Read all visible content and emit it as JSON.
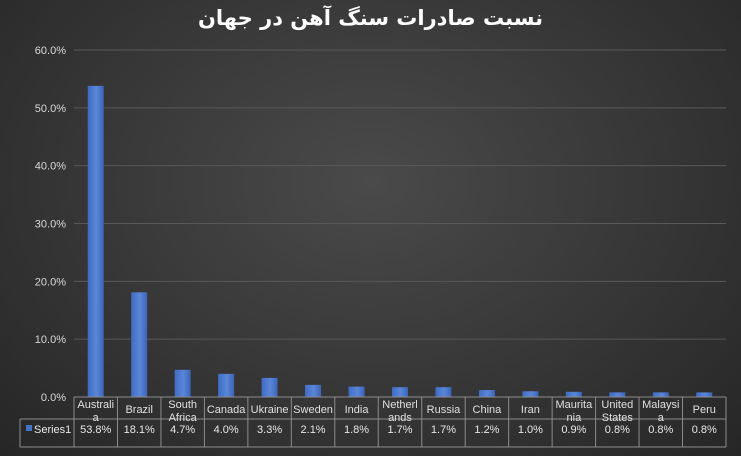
{
  "chart_data": {
    "type": "bar",
    "title": "نسبت صادرات سنگ آهن در جهان",
    "categories": [
      "Australia",
      "Brazil",
      "South Africa",
      "Canada",
      "Ukraine",
      "Sweden",
      "India",
      "Netherlands",
      "Russia",
      "China",
      "Iran",
      "Mauritania",
      "United States",
      "Malaysia",
      "Peru"
    ],
    "category_lines": [
      [
        "Australi",
        "a"
      ],
      [
        "Brazil"
      ],
      [
        "South",
        "Africa"
      ],
      [
        "Canada"
      ],
      [
        "Ukraine"
      ],
      [
        "Sweden"
      ],
      [
        "India"
      ],
      [
        "Netherl",
        "ands"
      ],
      [
        "Russia"
      ],
      [
        "China"
      ],
      [
        "Iran"
      ],
      [
        "Maurita",
        "nia"
      ],
      [
        "United",
        "States"
      ],
      [
        "Malaysi",
        "a"
      ],
      [
        "Peru"
      ]
    ],
    "series": [
      {
        "name": "Series1",
        "values": [
          53.8,
          18.1,
          4.7,
          4.0,
          3.3,
          2.1,
          1.8,
          1.7,
          1.7,
          1.2,
          1.0,
          0.9,
          0.8,
          0.8,
          0.8
        ],
        "labels": [
          "53.8%",
          "18.1%",
          "4.7%",
          "4.0%",
          "3.3%",
          "2.1%",
          "1.8%",
          "1.7%",
          "1.7%",
          "1.2%",
          "1.0%",
          "0.9%",
          "0.8%",
          "0.8%",
          "0.8%"
        ]
      }
    ],
    "ylim": [
      0,
      60
    ],
    "yticks": [
      0,
      10,
      20,
      30,
      40,
      50,
      60
    ],
    "ytick_labels": [
      "0.0%",
      "10.0%",
      "20.0%",
      "30.0%",
      "40.0%",
      "50.0%",
      "60.0%"
    ],
    "grid": true,
    "data_table": true,
    "colors": {
      "bar": "#4472c4",
      "bar_light": "#6b93dd",
      "grid": "#595959",
      "background": "#3a3a3a"
    }
  }
}
